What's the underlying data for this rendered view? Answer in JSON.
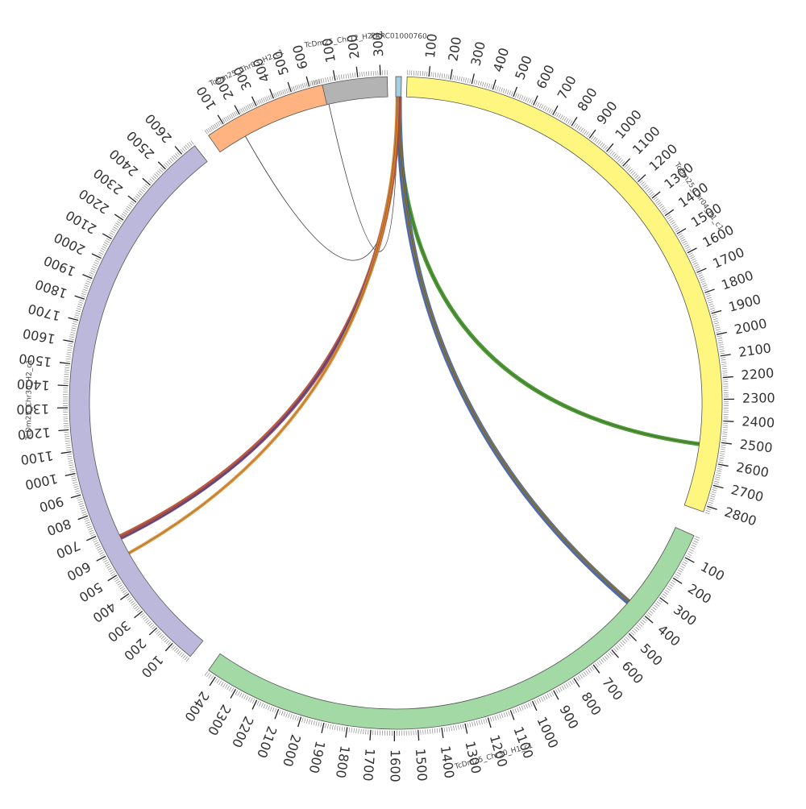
{
  "chromosomes": [
    {
      "id": "chr12",
      "name": "TcDm25_Chr12_H2_c1",
      "length": 330,
      "color": "#b3b3b3",
      "label_step": 100
    },
    {
      "id": "prrc",
      "name": "PRRC01000760",
      "length": 8,
      "color": "#a6cee3",
      "label_step": 0
    },
    {
      "id": "chr04",
      "name": "TcDm25_Chr04_H1_c1",
      "length": 2830,
      "color": "#fff680",
      "label_step": 100
    },
    {
      "id": "chr30h1",
      "name": "TcDm25_Chr30_H1_c1",
      "length": 2440,
      "color": "#a3d9a5",
      "label_step": 100
    },
    {
      "id": "chr30h2",
      "name": "TcDm25_Chr30_H2_c1",
      "length": 2670,
      "color": "#bbb8dc",
      "label_step": 100
    },
    {
      "id": "chr03",
      "name": "TcDm25_Chr03_H2_c1",
      "length": 670,
      "color": "#ffb380",
      "label_step": 100
    }
  ],
  "links": [
    {
      "from": "prrc",
      "from_pos": 2,
      "to": "chr03",
      "to_pos": 170,
      "color": "#222222",
      "width": 0.8
    },
    {
      "from": "prrc",
      "from_pos": 3,
      "to": "chr12",
      "to_pos": 50,
      "color": "#222222",
      "width": 0.8
    },
    {
      "from": "prrc",
      "from_pos": 4,
      "to": "chr04",
      "to_pos": 2520,
      "color": "#3a8c1f",
      "width": 5
    },
    {
      "from": "prrc",
      "from_pos": 5,
      "to": "chr30h1",
      "to_pos": 400,
      "color": "#3d5a9e",
      "width": 7
    },
    {
      "from": "prrc",
      "from_pos": 6,
      "to": "chr30h1",
      "to_pos": 395,
      "color": "#8c7a3a",
      "width": 3
    },
    {
      "from": "prrc",
      "from_pos": 4,
      "to": "chr30h2",
      "to_pos": 650,
      "color": "#b5452b",
      "width": 6
    },
    {
      "from": "prrc",
      "from_pos": 3,
      "to": "chr30h2",
      "to_pos": 640,
      "color": "#6a4b8e",
      "width": 3
    },
    {
      "from": "prrc",
      "from_pos": 2,
      "to": "chr30h2",
      "to_pos": 560,
      "color": "#d98a2b",
      "width": 4
    }
  ]
}
